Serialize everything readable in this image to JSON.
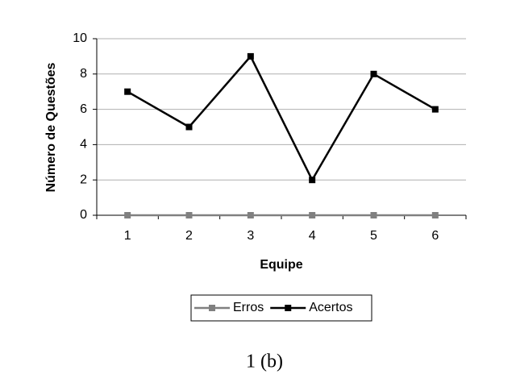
{
  "chart_data": {
    "type": "line",
    "x_label": "Equipe",
    "y_label": "Número de Questões",
    "categories": [
      "1",
      "2",
      "3",
      "4",
      "5",
      "6"
    ],
    "series": [
      {
        "name": "Erros",
        "color": "#808080",
        "values": [
          0,
          0,
          0,
          0,
          0,
          0
        ]
      },
      {
        "name": "Acertos",
        "color": "#000000",
        "values": [
          7,
          5,
          9,
          2,
          8,
          6
        ]
      }
    ],
    "ylim": [
      0,
      10
    ],
    "yticks": [
      0,
      2,
      4,
      6,
      8,
      10
    ],
    "grid": true,
    "legend": "bottom"
  },
  "caption": "1 (b)"
}
